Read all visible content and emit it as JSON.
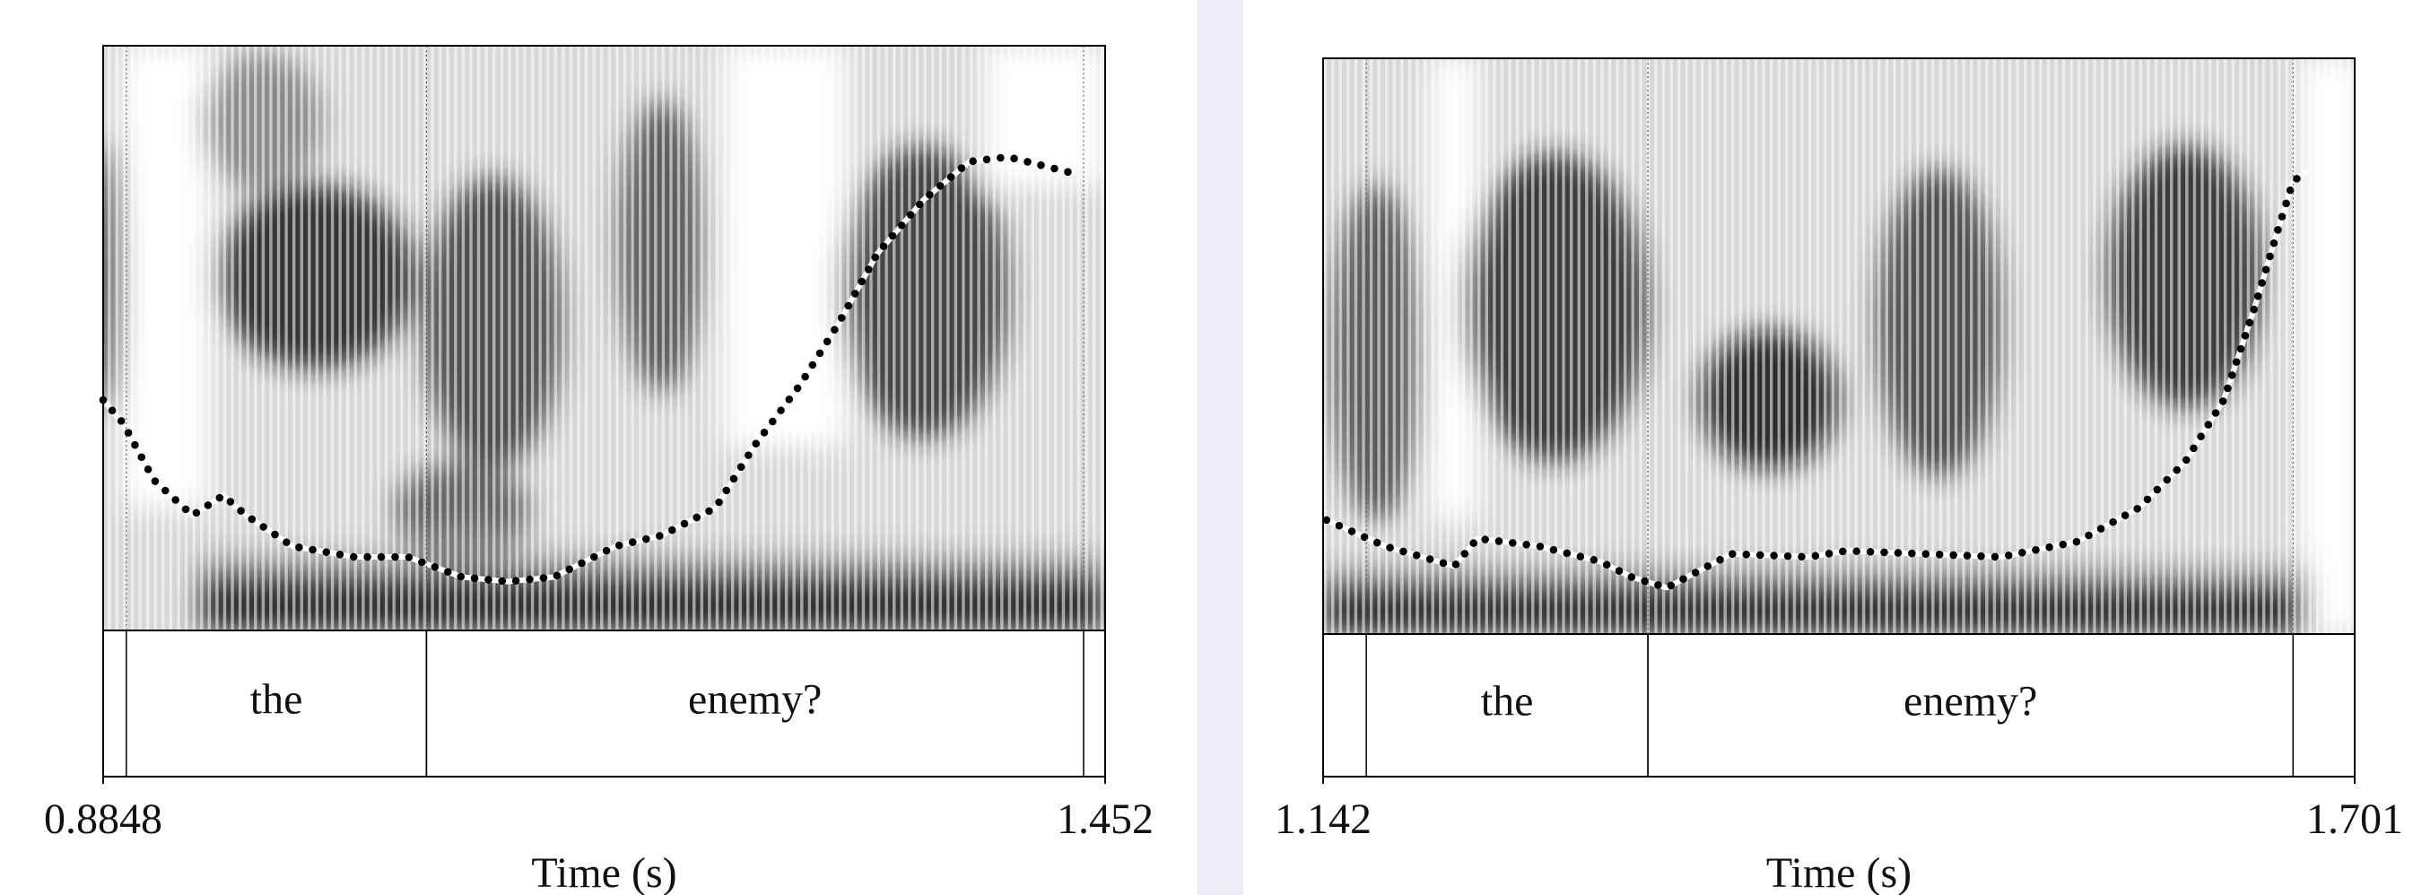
{
  "chart_data": [
    {
      "type": "spectrogram",
      "xlabel": "Time (s)",
      "xlim": [
        0.8848,
        1.452
      ],
      "xticks": [
        0.8848,
        1.452
      ],
      "intervals": [
        {
          "label": "the",
          "xmin": 0.8979,
          "xmax": 1.0678
        },
        {
          "label": "enemy?",
          "xmin": 1.0678,
          "xmax": 1.4398
        }
      ]
    },
    {
      "type": "spectrogram",
      "xlabel": "Time (s)",
      "xlim": [
        1.142,
        1.701
      ],
      "xticks": [
        1.142,
        1.701
      ],
      "intervals": [
        {
          "label": "the",
          "xmin": 1.1654,
          "xmax": 1.318
        },
        {
          "label": "enemy?",
          "xmin": 1.318,
          "xmax": 1.6676
        }
      ]
    }
  ]
}
